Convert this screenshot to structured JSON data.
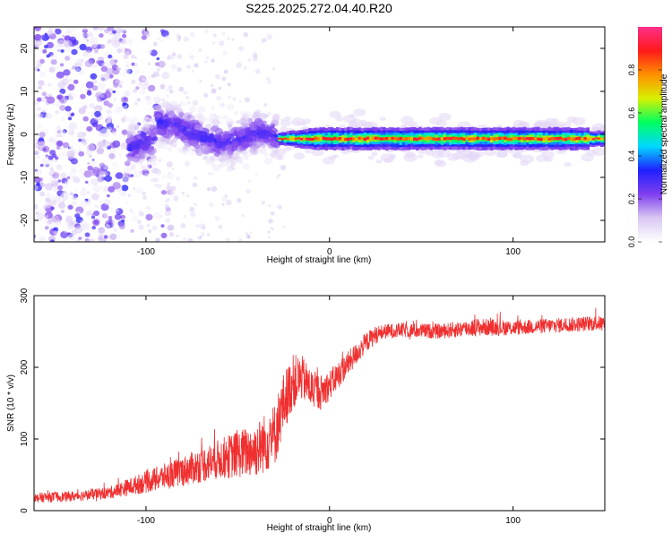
{
  "figure": {
    "title": "S225.2025.272.04.40.R20"
  },
  "chart_data": [
    {
      "type": "heatmap",
      "title": "S225.2025.272.04.40.R20",
      "xlabel": "Height of straight line (km)",
      "ylabel": "Frequency (Hz)",
      "xlim": [
        -161,
        150
      ],
      "ylim": [
        -25,
        25
      ],
      "x_ticks": [
        -100,
        0,
        100
      ],
      "x_tick_labels": [
        "-100",
        "0",
        "100"
      ],
      "y_ticks": [
        -20,
        -10,
        0,
        10,
        20
      ],
      "y_tick_labels": [
        "-20",
        "-10",
        "0",
        "10",
        "20"
      ],
      "colorbar": {
        "label": "Normalized spectral amplitude",
        "range": [
          0.0,
          1.0
        ],
        "ticks": [
          0.0,
          0.2,
          0.4,
          0.6,
          0.8
        ],
        "tick_labels": [
          "0.0",
          "0.2",
          "0.4",
          "0.6",
          "0.8"
        ],
        "colors": [
          "#ffffff",
          "#d9c8f2",
          "#7f3fef",
          "#2020ff",
          "#00d8ff",
          "#00ff60",
          "#d8f000",
          "#ff9000",
          "#ff1a1a",
          "#ff2f8a"
        ]
      },
      "features": [
        {
          "name": "scattered noise",
          "x_range": [
            -161,
            -110
          ],
          "y_range": [
            -25,
            25
          ],
          "amplitude": 0.15
        },
        {
          "name": "meandering line",
          "x_range": [
            -110,
            -28
          ],
          "y_center": 0.5,
          "y_spread": 5,
          "amplitude": 0.25
        },
        {
          "name": "tight line",
          "x_range": [
            -28,
            150
          ],
          "y_center": -1,
          "y_spread": 1.5,
          "amplitude": 0.85
        }
      ]
    },
    {
      "type": "line",
      "xlabel": "Height of straight line (km)",
      "ylabel": "SNR (10 * v/v)",
      "xlim": [
        -161,
        150
      ],
      "ylim": [
        0,
        300
      ],
      "x_ticks": [
        -100,
        0,
        100
      ],
      "x_tick_labels": [
        "-100",
        "0",
        "100"
      ],
      "y_ticks": [
        0,
        100,
        200,
        300
      ],
      "y_tick_labels": [
        "0",
        "100",
        "200",
        "300"
      ],
      "color": "#f03030",
      "series": [
        {
          "name": "SNR",
          "x": [
            -161,
            -140,
            -120,
            -100,
            -80,
            -60,
            -40,
            -30,
            -25,
            -20,
            -15,
            -10,
            -5,
            0,
            5,
            10,
            15,
            20,
            25,
            30,
            40,
            60,
            80,
            100,
            120,
            150
          ],
          "y": [
            18,
            20,
            25,
            40,
            55,
            72,
            85,
            105,
            150,
            180,
            185,
            170,
            165,
            175,
            190,
            205,
            220,
            235,
            245,
            250,
            252,
            250,
            256,
            255,
            258,
            262
          ],
          "noise_amplitude": [
            10,
            10,
            12,
            22,
            30,
            40,
            55,
            65,
            60,
            55,
            45,
            40,
            35,
            30,
            28,
            25,
            22,
            20,
            18,
            15,
            15,
            15,
            18,
            15,
            15,
            15
          ]
        }
      ]
    }
  ]
}
